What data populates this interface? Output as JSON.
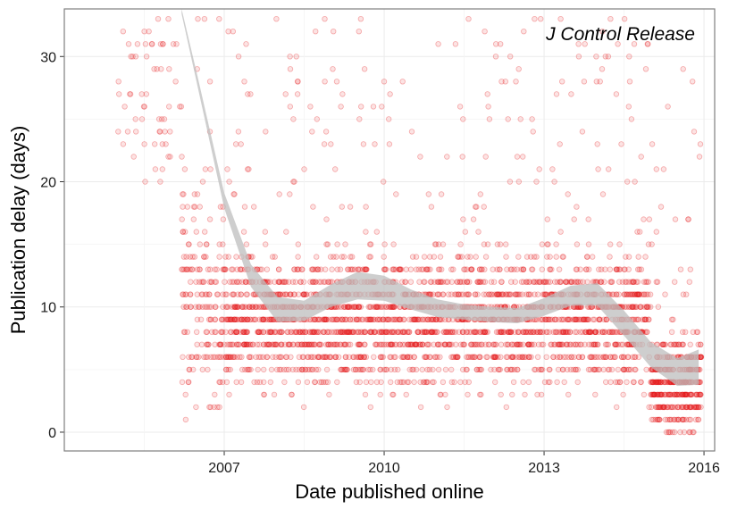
{
  "chart_data": {
    "type": "scatter",
    "title": "",
    "annotation": "J Control Release",
    "xlabel": "Date published online",
    "ylabel": "Publication delay (days)",
    "x_ticks": [
      "2007",
      "2010",
      "2013",
      "2016"
    ],
    "x_tick_values": [
      2007.0,
      2010.0,
      2013.0,
      2016.0
    ],
    "y_ticks": [
      "0",
      "10",
      "20",
      "30"
    ],
    "y_tick_values": [
      0,
      10,
      20,
      30
    ],
    "xlim": [
      2004.0,
      2016.2
    ],
    "ylim": [
      -1.5,
      33.8
    ],
    "grid": true,
    "point_color": "#e41a1c",
    "band_color": "#bdbdbd",
    "panel_border_color": "#7f7f7f",
    "grid_color": "#ebebeb",
    "smooth_fit": {
      "x": [
        2006.2,
        2006.5,
        2007.0,
        2007.5,
        2008.0,
        2008.5,
        2009.0,
        2009.5,
        2010.0,
        2010.5,
        2011.0,
        2011.5,
        2012.0,
        2012.5,
        2013.0,
        2013.5,
        2014.0,
        2014.5,
        2015.0,
        2015.5,
        2015.9
      ],
      "y": [
        33.8,
        28.0,
        18.5,
        12.5,
        9.8,
        9.7,
        10.9,
        11.7,
        11.5,
        10.6,
        9.9,
        9.6,
        9.4,
        9.3,
        10.0,
        10.9,
        11.0,
        8.7,
        6.2,
        4.8,
        5.2
      ],
      "band": [
        0.4,
        0.4,
        0.6,
        0.9,
        1.0,
        0.8,
        0.9,
        1.1,
        1.0,
        0.8,
        0.7,
        0.6,
        0.6,
        0.6,
        0.7,
        0.8,
        0.9,
        1.0,
        1.0,
        1.1,
        1.4
      ]
    },
    "point_density": [
      {
        "x_from": 2005.0,
        "x_to": 2006.2,
        "n": 60,
        "y_mode": "sparse_high"
      },
      {
        "x_from": 2006.2,
        "x_to": 2007.0,
        "n": 180,
        "y_center": 10,
        "y_spread": 6
      },
      {
        "x_from": 2007.0,
        "x_to": 2015.0,
        "n": 2600,
        "y_center": 9,
        "y_spread": 4
      },
      {
        "x_from": 2015.0,
        "x_to": 2015.95,
        "n": 420,
        "y_center": 4,
        "y_spread": 3
      }
    ]
  }
}
